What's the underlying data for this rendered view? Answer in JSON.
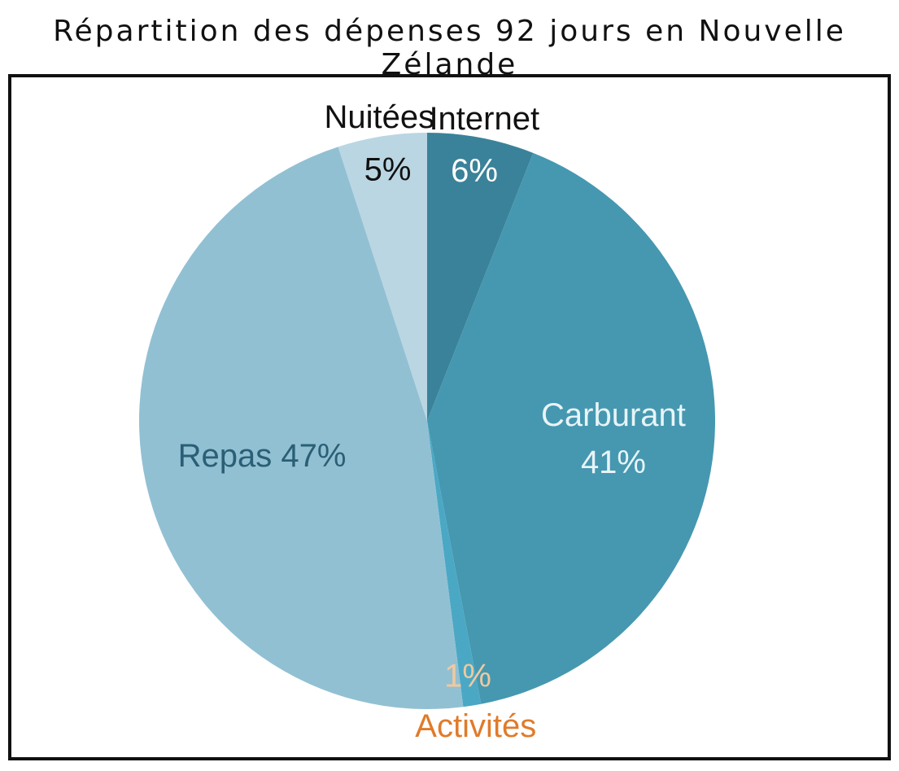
{
  "title": "Répartition des dépenses 92 jours en Nouvelle Zélande",
  "chart_data": {
    "type": "pie",
    "title": "Répartition des dépenses 92 jours en Nouvelle Zélande",
    "start_angle_deg": 0,
    "direction": "clockwise",
    "slices": [
      {
        "name": "Internet",
        "value": 6,
        "label": "6%",
        "color": "#3a8299",
        "label_color": "#ffffff"
      },
      {
        "name": "Carburant",
        "value": 41,
        "label": "41%",
        "color": "#4598b0",
        "label_color": "#e8f4f8"
      },
      {
        "name": "Activités",
        "value": 1,
        "label": "1%",
        "color": "#4aa8c4",
        "label_color": "#f0c9a0",
        "name_color": "#e07b2a"
      },
      {
        "name": "Repas",
        "value": 47,
        "label": "47%",
        "color": "#92c0d3",
        "label_color": "#2a5f75"
      },
      {
        "name": "Nuitées",
        "value": 5,
        "label": "5%",
        "color": "#bad6e3",
        "label_color": "#111111"
      }
    ]
  }
}
